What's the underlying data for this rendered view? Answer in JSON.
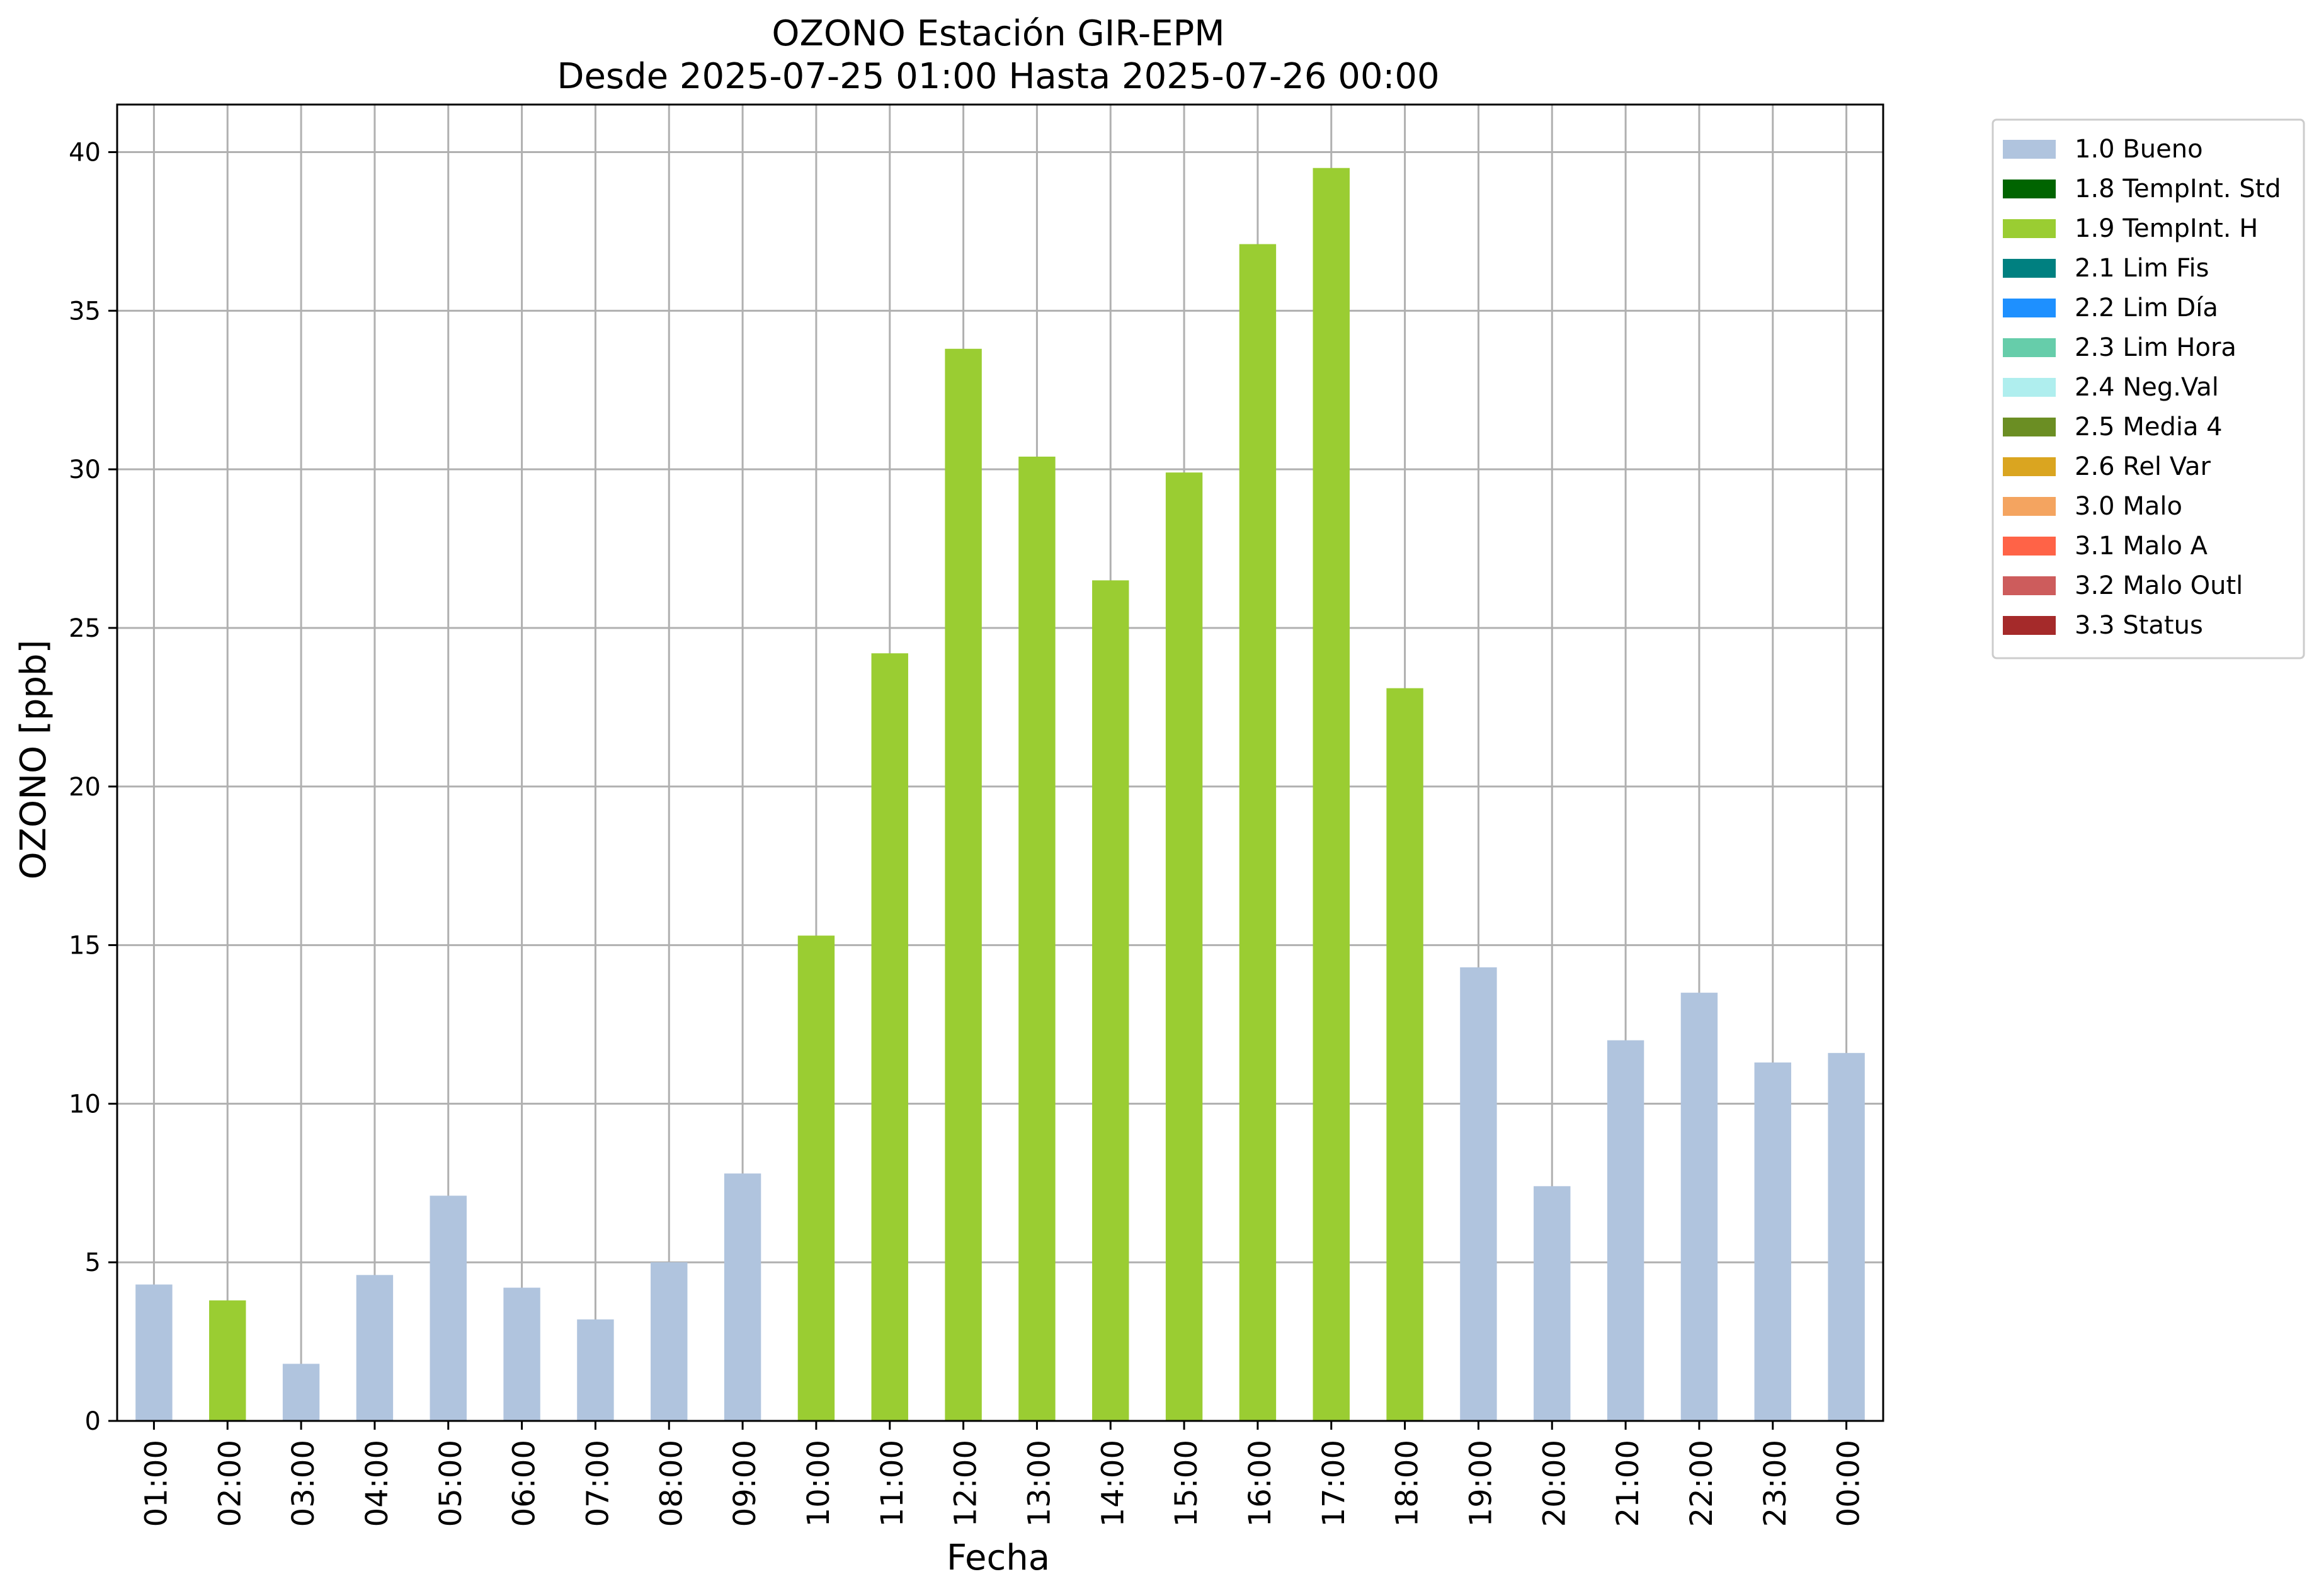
{
  "chart_data": {
    "type": "bar",
    "title": "OZONO Estación GIR-EPM",
    "subtitle": "Desde 2025-07-25 01:00 Hasta 2025-07-26 00:00",
    "xlabel": "Fecha",
    "ylabel": "OZONO [ppb]",
    "ylim": [
      0,
      41.5
    ],
    "yticks": [
      0,
      5,
      10,
      15,
      20,
      25,
      30,
      35,
      40
    ],
    "grid": true,
    "legend_position": "outside-top-right",
    "categories": [
      "01:00",
      "02:00",
      "03:00",
      "04:00",
      "05:00",
      "06:00",
      "07:00",
      "08:00",
      "09:00",
      "10:00",
      "11:00",
      "12:00",
      "13:00",
      "14:00",
      "15:00",
      "16:00",
      "17:00",
      "18:00",
      "19:00",
      "20:00",
      "21:00",
      "22:00",
      "23:00",
      "00:00"
    ],
    "values": [
      4.3,
      3.8,
      1.8,
      4.6,
      7.1,
      4.2,
      3.2,
      5.0,
      7.8,
      15.3,
      24.2,
      33.8,
      30.4,
      26.5,
      29.9,
      37.1,
      39.5,
      23.1,
      14.3,
      7.4,
      12.0,
      13.5,
      11.3,
      11.6
    ],
    "flags": [
      "1.0 Bueno",
      "1.9 TempInt. H",
      "1.0 Bueno",
      "1.0 Bueno",
      "1.0 Bueno",
      "1.0 Bueno",
      "1.0 Bueno",
      "1.0 Bueno",
      "1.0 Bueno",
      "1.9 TempInt. H",
      "1.9 TempInt. H",
      "1.9 TempInt. H",
      "1.9 TempInt. H",
      "1.9 TempInt. H",
      "1.9 TempInt. H",
      "1.9 TempInt. H",
      "1.9 TempInt. H",
      "1.9 TempInt. H",
      "1.0 Bueno",
      "1.0 Bueno",
      "1.0 Bueno",
      "1.0 Bueno",
      "1.0 Bueno",
      "1.0 Bueno"
    ],
    "legend": [
      {
        "label": "1.0 Bueno",
        "color": "#b0c4de"
      },
      {
        "label": "1.8 TempInt. Std",
        "color": "#006400"
      },
      {
        "label": "1.9 TempInt. H",
        "color": "#9acd32"
      },
      {
        "label": "2.1 Lim Fis",
        "color": "#008080"
      },
      {
        "label": "2.2 Lim Día",
        "color": "#1e90ff"
      },
      {
        "label": "2.3 Lim Hora",
        "color": "#66cdaa"
      },
      {
        "label": "2.4 Neg.Val",
        "color": "#afeeee"
      },
      {
        "label": "2.5 Media 4",
        "color": "#6b8e23"
      },
      {
        "label": "2.6 Rel Var",
        "color": "#daa520"
      },
      {
        "label": "3.0 Malo",
        "color": "#f4a460"
      },
      {
        "label": "3.1 Malo A",
        "color": "#ff6347"
      },
      {
        "label": "3.2 Malo Outl",
        "color": "#cd5c5c"
      },
      {
        "label": "3.3 Status",
        "color": "#a52a2a"
      }
    ]
  }
}
